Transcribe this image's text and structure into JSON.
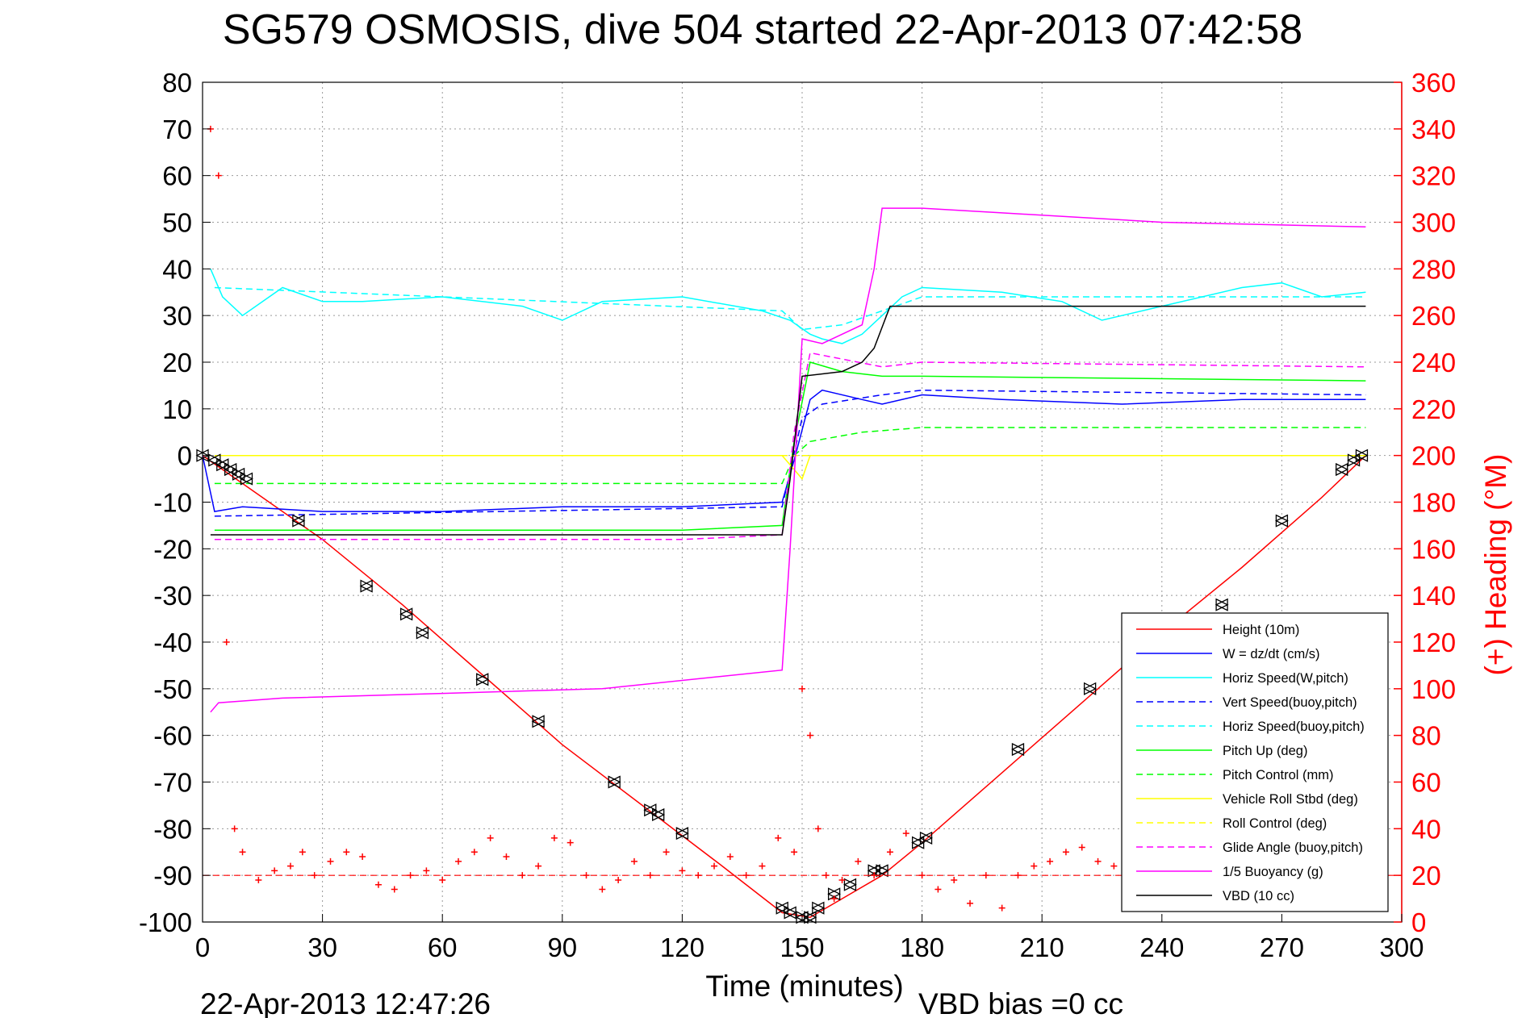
{
  "chart_data": {
    "type": "line",
    "title": "SG579 OSMOSIS, dive 504 started 22-Apr-2013 07:42:58",
    "xlabel": "Time (minutes)",
    "ylabel": "",
    "y2label": "(+) Heading (°M)",
    "xlim": [
      0,
      300
    ],
    "ylim": [
      -100,
      80
    ],
    "y2lim": [
      0,
      360
    ],
    "xticks": [
      "0",
      "30",
      "60",
      "90",
      "120",
      "150",
      "180",
      "210",
      "240",
      "270",
      "300"
    ],
    "yticks": [
      "80",
      "70",
      "60",
      "50",
      "40",
      "30",
      "20",
      "10",
      "0",
      "-10",
      "-20",
      "-30",
      "-40",
      "-50",
      "-60",
      "-70",
      "-80",
      "-90",
      "-100"
    ],
    "y2ticks": [
      "360",
      "340",
      "320",
      "300",
      "280",
      "260",
      "240",
      "220",
      "200",
      "180",
      "160",
      "140",
      "120",
      "100",
      "80",
      "60",
      "40",
      "20",
      "0"
    ],
    "grid": true,
    "legend_position": "lower-right",
    "footer_left": "22-Apr-2013 12:47:26",
    "footer_right": "VBD bias =0 cc",
    "colors": {
      "red": "#ff0000",
      "blue": "#0000ff",
      "cyan": "#00ffff",
      "green": "#00ff00",
      "yellow": "#ffff00",
      "magenta": "#ff00ff",
      "black": "#000000"
    },
    "legend": [
      {
        "label": "Height (10m)",
        "color": "#ff0000",
        "dash": false
      },
      {
        "label": "W = dz/dt (cm/s)",
        "color": "#0000ff",
        "dash": false
      },
      {
        "label": "Horiz Speed(W,pitch)",
        "color": "#00ffff",
        "dash": false
      },
      {
        "label": "Vert Speed(buoy,pitch)",
        "color": "#0000ff",
        "dash": true
      },
      {
        "label": "Horiz Speed(buoy,pitch)",
        "color": "#00ffff",
        "dash": true
      },
      {
        "label": "Pitch Up (deg)",
        "color": "#00ff00",
        "dash": false
      },
      {
        "label": "Pitch Control (mm)",
        "color": "#00ff00",
        "dash": true
      },
      {
        "label": "Vehicle Roll Stbd (deg)",
        "color": "#ffff00",
        "dash": false
      },
      {
        "label": "Roll Control (deg)",
        "color": "#ffff00",
        "dash": true
      },
      {
        "label": "Glide Angle (buoy,pitch)",
        "color": "#ff00ff",
        "dash": true
      },
      {
        "label": "1/5 Buoyancy (g)",
        "color": "#ff00ff",
        "dash": false
      },
      {
        "label": "VBD (10 cc)",
        "color": "#000000",
        "dash": false
      }
    ],
    "series": [
      {
        "name": "Height (10m)",
        "color": "#ff0000",
        "dash": false,
        "x": [
          0,
          10,
          30,
          50,
          70,
          90,
          110,
          130,
          145,
          152,
          160,
          170,
          180,
          200,
          220,
          240,
          260,
          280,
          291
        ],
        "y": [
          0,
          -6,
          -18,
          -32,
          -47,
          -62,
          -75,
          -88,
          -98,
          -99,
          -95,
          -90,
          -83,
          -68,
          -53,
          -38,
          -24,
          -9,
          0
        ]
      },
      {
        "name": "W = dz/dt (cm/s)",
        "color": "#0000ff",
        "dash": false,
        "x": [
          0,
          3,
          10,
          30,
          60,
          90,
          120,
          145,
          148,
          152,
          155,
          165,
          170,
          180,
          200,
          230,
          260,
          291
        ],
        "y": [
          0,
          -12,
          -11,
          -12,
          -12,
          -11,
          -11,
          -10,
          -1,
          12,
          14,
          12,
          11,
          13,
          12,
          11,
          12,
          12
        ]
      },
      {
        "name": "Horiz Speed(W,pitch)",
        "color": "#00ffff",
        "dash": false,
        "x": [
          2,
          5,
          10,
          20,
          30,
          40,
          60,
          80,
          90,
          100,
          120,
          140,
          147,
          152,
          155,
          160,
          165,
          170,
          175,
          180,
          200,
          215,
          225,
          240,
          260,
          270,
          280,
          291
        ],
        "y": [
          40,
          34,
          30,
          36,
          33,
          33,
          34,
          32,
          29,
          33,
          34,
          31,
          29,
          26,
          25,
          24,
          26,
          30,
          34,
          36,
          35,
          33,
          29,
          32,
          36,
          37,
          34,
          35
        ]
      },
      {
        "name": "Vert Speed(buoy,pitch)",
        "color": "#0000ff",
        "dash": true,
        "x": [
          3,
          145,
          150,
          155,
          170,
          180,
          291
        ],
        "y": [
          -13,
          -11,
          8,
          11,
          13,
          14,
          13
        ]
      },
      {
        "name": "Horiz Speed(buoy,pitch)",
        "color": "#00ffff",
        "dash": true,
        "x": [
          3,
          60,
          145,
          150,
          160,
          180,
          291
        ],
        "y": [
          36,
          34,
          31,
          27,
          28,
          34,
          34
        ]
      },
      {
        "name": "Pitch Up (deg)",
        "color": "#00ff00",
        "dash": false,
        "x": [
          3,
          60,
          120,
          145,
          148,
          152,
          160,
          170,
          180,
          291
        ],
        "y": [
          -16,
          -16,
          -16,
          -15,
          3,
          20,
          18,
          17,
          17,
          16
        ]
      },
      {
        "name": "Pitch Control (mm)",
        "color": "#00ff00",
        "dash": true,
        "x": [
          3,
          145,
          148,
          152,
          165,
          180,
          291
        ],
        "y": [
          -6,
          -6,
          0,
          3,
          5,
          6,
          6
        ]
      },
      {
        "name": "Vehicle Roll Stbd (deg)",
        "color": "#ffff00",
        "dash": false,
        "x": [
          3,
          40,
          80,
          120,
          145,
          150,
          152,
          200,
          250,
          291
        ],
        "y": [
          0,
          0,
          0,
          0,
          0,
          -5,
          0,
          0,
          0,
          0
        ]
      },
      {
        "name": "Roll Control (deg)",
        "color": "#ffff00",
        "dash": true,
        "x": [
          3,
          145,
          155,
          291
        ],
        "y": [
          0,
          0,
          0,
          0
        ]
      },
      {
        "name": "Glide Angle (buoy,pitch)",
        "color": "#ff00ff",
        "dash": true,
        "x": [
          3,
          60,
          120,
          145,
          148,
          152,
          170,
          180,
          291
        ],
        "y": [
          -18,
          -18,
          -18,
          -17,
          5,
          22,
          19,
          20,
          19
        ]
      },
      {
        "name": "1/5 Buoyancy (g)",
        "color": "#ff00ff",
        "dash": false,
        "x": [
          2,
          4,
          20,
          60,
          100,
          145,
          147,
          150,
          155,
          165,
          168,
          170,
          180,
          200,
          240,
          291
        ],
        "y": [
          -55,
          -53,
          -52,
          -51,
          -50,
          -46,
          -20,
          25,
          24,
          28,
          40,
          53,
          53,
          52,
          50,
          49
        ]
      },
      {
        "name": "VBD (10 cc)",
        "color": "#000000",
        "dash": false,
        "x": [
          2,
          4,
          20,
          60,
          100,
          145,
          147,
          150,
          160,
          165,
          168,
          172,
          180,
          200,
          240,
          291
        ],
        "y": [
          -17,
          -17,
          -17,
          -17,
          -17,
          -17,
          -5,
          17,
          18,
          20,
          23,
          32,
          32,
          32,
          32,
          32
        ]
      },
      {
        "name": "(+) Heading (°M)",
        "color": "#ff0000",
        "axis": "right",
        "marker": "+",
        "x": [
          2,
          4,
          6,
          8,
          10,
          14,
          18,
          22,
          25,
          28,
          32,
          36,
          40,
          44,
          48,
          52,
          56,
          60,
          64,
          68,
          72,
          76,
          80,
          84,
          88,
          92,
          96,
          100,
          104,
          108,
          112,
          116,
          120,
          124,
          128,
          132,
          136,
          140,
          144,
          148,
          150,
          152,
          154,
          156,
          158,
          160,
          164,
          168,
          172,
          176,
          180,
          184,
          188,
          192,
          196,
          200,
          204,
          208,
          212,
          216,
          220,
          224,
          228,
          232,
          236,
          240,
          244,
          248,
          252,
          256,
          260,
          264,
          268,
          272,
          276,
          280,
          284,
          288,
          291
        ],
        "y": [
          340,
          320,
          120,
          40,
          30,
          18,
          22,
          24,
          30,
          20,
          26,
          30,
          28,
          16,
          14,
          20,
          22,
          18,
          26,
          30,
          36,
          28,
          20,
          24,
          36,
          34,
          20,
          14,
          18,
          26,
          20,
          30,
          22,
          20,
          24,
          28,
          20,
          24,
          36,
          30,
          100,
          80,
          40,
          20,
          10,
          18,
          26,
          20,
          30,
          38,
          20,
          14,
          18,
          8,
          20,
          6,
          20,
          24,
          26,
          30,
          32,
          26,
          24,
          20,
          18,
          22,
          28,
          24,
          20,
          30,
          28,
          22,
          24,
          28,
          20,
          22,
          26,
          24,
          20
        ]
      }
    ],
    "markers": {
      "points": [
        [
          0,
          0
        ],
        [
          3,
          -1
        ],
        [
          5,
          -2
        ],
        [
          7,
          -3
        ],
        [
          9,
          -4
        ],
        [
          11,
          -5
        ],
        [
          24,
          -14
        ],
        [
          41,
          -28
        ],
        [
          51,
          -34
        ],
        [
          55,
          -38
        ],
        [
          70,
          -48
        ],
        [
          84,
          -57
        ],
        [
          103,
          -70
        ],
        [
          112,
          -76
        ],
        [
          114,
          -77
        ],
        [
          120,
          -81
        ],
        [
          145,
          -97
        ],
        [
          147,
          -98
        ],
        [
          150,
          -99
        ],
        [
          152,
          -99
        ],
        [
          154,
          -97
        ],
        [
          158,
          -94
        ],
        [
          162,
          -92
        ],
        [
          168,
          -89
        ],
        [
          170,
          -89
        ],
        [
          179,
          -83
        ],
        [
          181,
          -82
        ],
        [
          204,
          -63
        ],
        [
          222,
          -50
        ],
        [
          249,
          -36
        ],
        [
          255,
          -32
        ],
        [
          270,
          -14
        ],
        [
          285,
          -3
        ],
        [
          288,
          -1
        ],
        [
          290,
          0
        ]
      ]
    }
  }
}
